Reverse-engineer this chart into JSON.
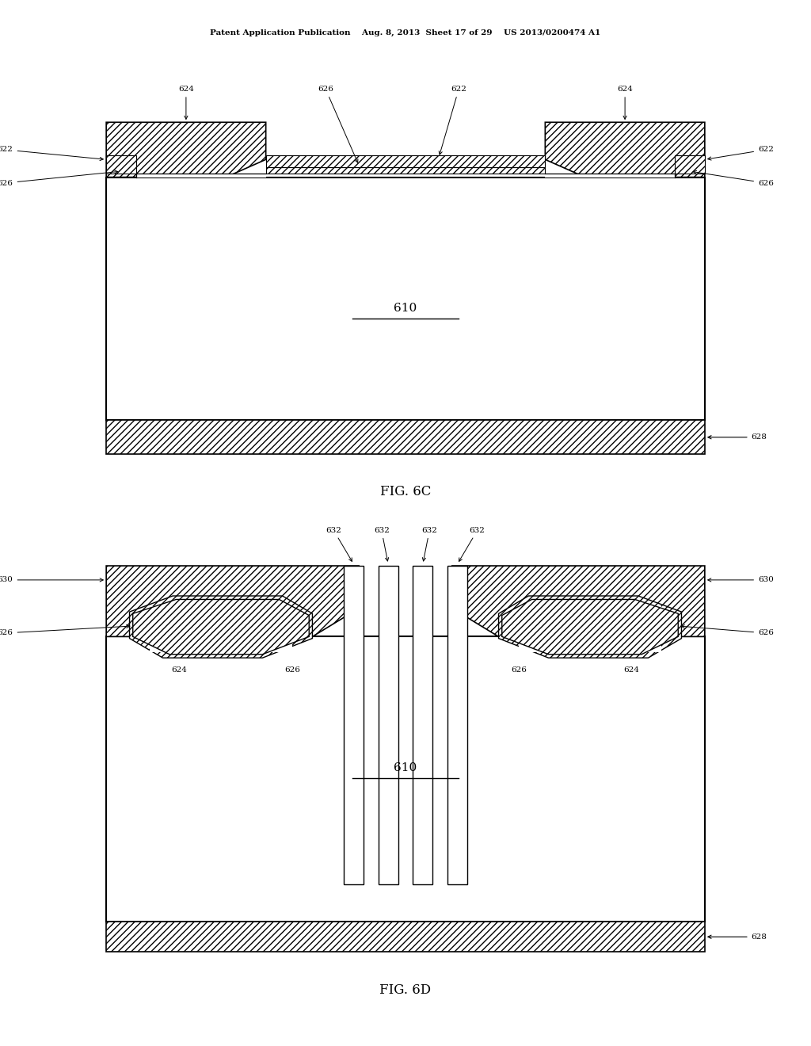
{
  "bg_color": "#ffffff",
  "line_color": "#000000",
  "fig_width": 10.24,
  "fig_height": 13.2,
  "header_text": "Patent Application Publication    Aug. 8, 2013  Sheet 17 of 29    US 2013/0200474 A1",
  "fig6c_label": "FIG. 6C",
  "fig6d_label": "FIG. 6D"
}
